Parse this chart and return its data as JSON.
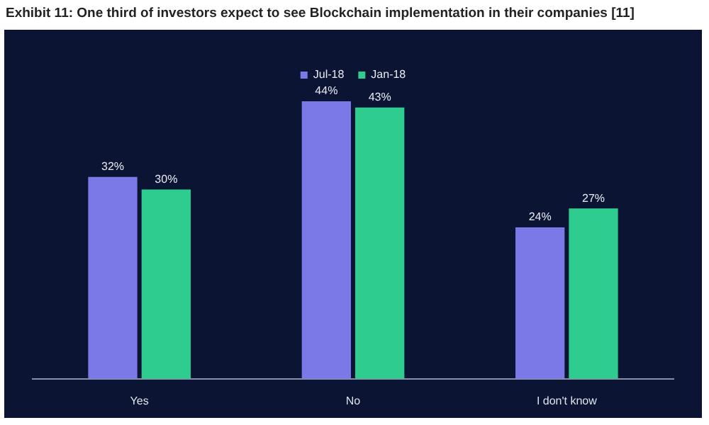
{
  "chart_data": {
    "type": "bar",
    "title": "Exhibit 11: One third of investors expect to see Blockchain implementation in their companies [11]",
    "categories": [
      "Yes",
      "No",
      "I don't know"
    ],
    "series": [
      {
        "name": "Jul-18",
        "color": "#7b78e8",
        "values": [
          32,
          44,
          24
        ],
        "value_labels": [
          "32%",
          "44%",
          "24%"
        ]
      },
      {
        "name": "Jan-18",
        "color": "#2ecc8e",
        "values": [
          30,
          43,
          27
        ],
        "value_labels": [
          "30%",
          "43%",
          "27%"
        ]
      }
    ],
    "legend": "top",
    "grid": false,
    "tick_labels": "x"
  }
}
